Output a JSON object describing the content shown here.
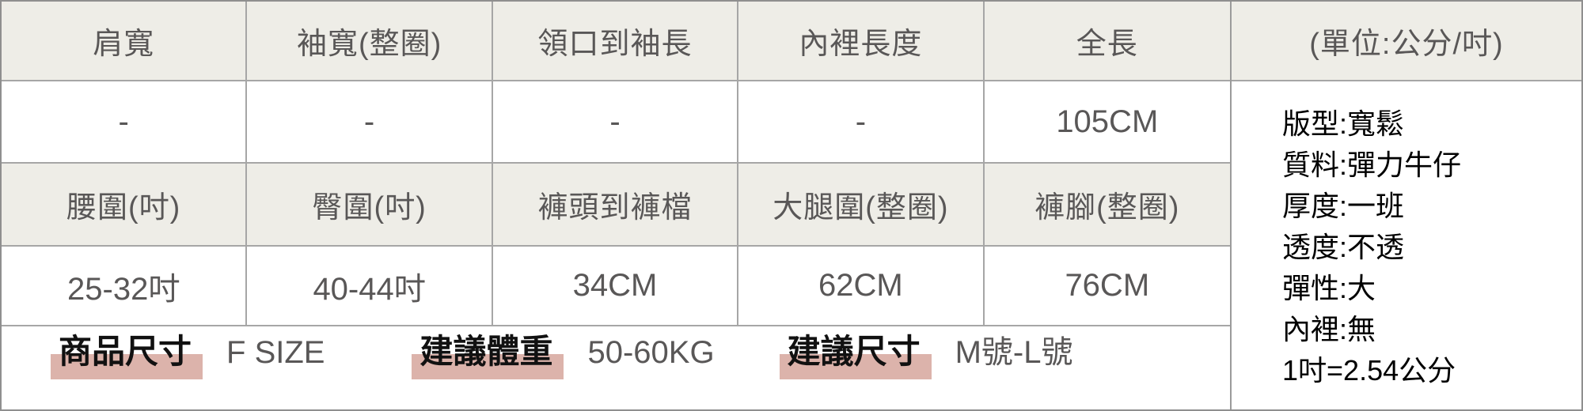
{
  "table": {
    "header_row_1": [
      "肩寬",
      "袖寬(整圈)",
      "領口到袖長",
      "內裡長度",
      "全長"
    ],
    "value_row_1": [
      "-",
      "-",
      "-",
      "-",
      "105CM"
    ],
    "header_row_2": [
      "腰圍(吋)",
      "臀圍(吋)",
      "褲頭到褲檔",
      "大腿圍(整圈)",
      "褲腳(整圈)"
    ],
    "value_row_2": [
      "25-32吋",
      "40-44吋",
      "34CM",
      "62CM",
      "76CM"
    ]
  },
  "footer": {
    "items": [
      {
        "label": "商品尺寸",
        "value": "F SIZE"
      },
      {
        "label": "建議體重",
        "value": "50-60KG"
      },
      {
        "label": "建議尺寸",
        "value": "M號-L號"
      }
    ]
  },
  "info_panel": {
    "header": "(單位:公分/吋)",
    "lines": [
      "版型:寬鬆",
      "質料:彈力牛仔",
      "厚度:一班",
      "透度:不透",
      "彈性:大",
      "內裡:無",
      "1吋=2.54公分"
    ]
  },
  "colors": {
    "header_bg": "#eeede7",
    "inner_border": "#a6a6a6",
    "outer_border": "#8f8f8f",
    "text_grey": "#595757",
    "text_black": "#111111",
    "highlight_pink": "#dcb3ab"
  }
}
